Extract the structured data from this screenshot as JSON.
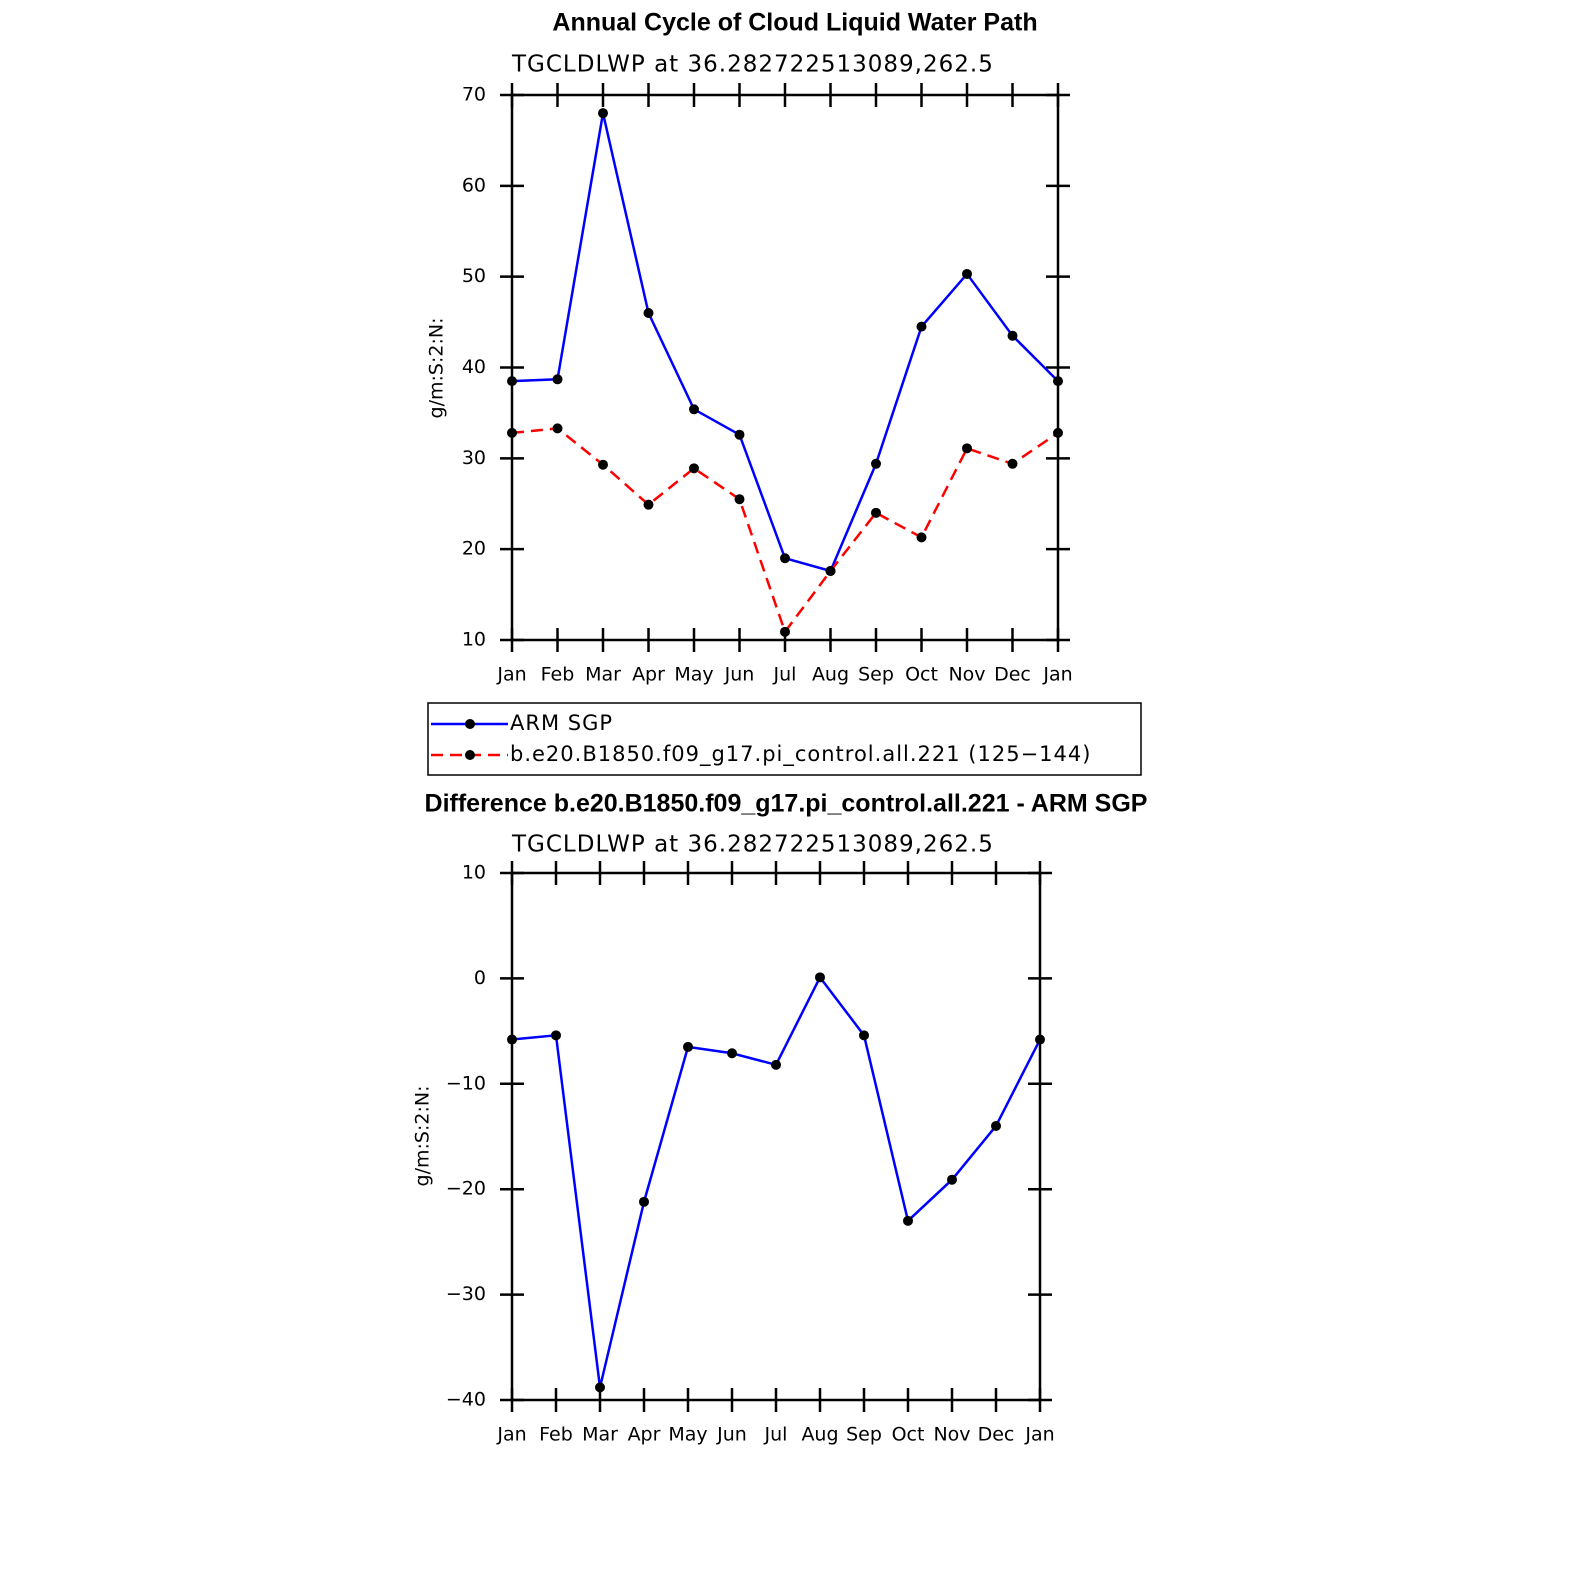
{
  "chart_data": [
    {
      "type": "line",
      "title": "Annual Cycle of Cloud Liquid Water Path",
      "subtitle": "TGCLDLWP  at  36.282722513089,262.5",
      "ylabel": "g/m:S:2:N:",
      "categories": [
        "Jan",
        "Feb",
        "Mar",
        "Apr",
        "May",
        "Jun",
        "Jul",
        "Aug",
        "Sep",
        "Oct",
        "Nov",
        "Dec",
        "Jan"
      ],
      "series": [
        {
          "name": "ARM SGP",
          "color": "#0000ff",
          "linestyle": "solid",
          "values": [
            38.5,
            38.7,
            68.0,
            46.0,
            35.4,
            32.6,
            19.0,
            17.6,
            29.4,
            44.5,
            50.3,
            43.5,
            38.5
          ]
        },
        {
          "name": "b.e20.B1850.f09_g17.pi_control.all.221 (125−144)",
          "color": "#ff0000",
          "linestyle": "dashed",
          "values": [
            32.8,
            33.3,
            29.3,
            24.9,
            28.9,
            25.5,
            10.9,
            17.6,
            24.0,
            21.3,
            31.1,
            29.4,
            32.8
          ]
        }
      ],
      "ylim": [
        10,
        70
      ],
      "yticks": [
        10,
        20,
        30,
        40,
        50,
        60,
        70
      ],
      "legend": "below"
    },
    {
      "type": "line",
      "title": "Difference b.e20.B1850.f09_g17.pi_control.all.221 - ARM SGP",
      "subtitle": "TGCLDLWP  at  36.282722513089,262.5",
      "ylabel": "g/m:S:2:N:",
      "categories": [
        "Jan",
        "Feb",
        "Mar",
        "Apr",
        "May",
        "Jun",
        "Jul",
        "Aug",
        "Sep",
        "Oct",
        "Nov",
        "Dec",
        "Jan"
      ],
      "series": [
        {
          "color": "#0000ff",
          "linestyle": "solid",
          "values": [
            -5.8,
            -5.4,
            -38.8,
            -21.2,
            -6.5,
            -7.1,
            -8.2,
            0.1,
            -5.4,
            -23.0,
            -19.1,
            -14.0,
            -5.8
          ]
        }
      ],
      "ylim": [
        -40,
        10
      ],
      "yticks": [
        {
          "value": 10,
          "label": "10"
        },
        {
          "value": 0,
          "label": "0"
        },
        {
          "value": -10,
          "label": "−10"
        },
        {
          "value": -20,
          "label": "−20"
        },
        {
          "value": -30,
          "label": "−30"
        },
        {
          "value": -40,
          "label": "−40"
        }
      ]
    }
  ]
}
